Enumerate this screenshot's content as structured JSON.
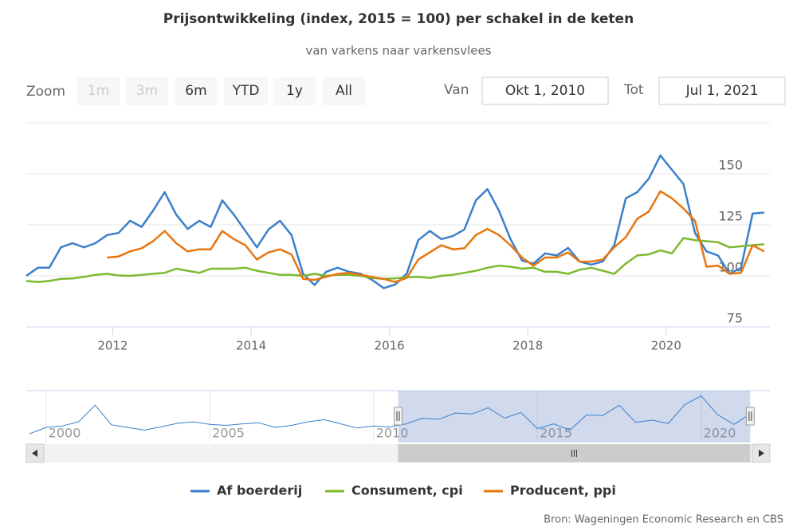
{
  "chart_data": {
    "type": "line",
    "title": "Prijsontwikkeling (index, 2015 = 100) per schakel in de keten",
    "subtitle": "van varkens naar varkensvlees",
    "range_selector": {
      "label": "Zoom",
      "buttons": [
        "1m",
        "3m",
        "6m",
        "YTD",
        "1y",
        "All"
      ],
      "enabled": [
        false,
        false,
        true,
        true,
        true,
        true
      ],
      "from_label": "Van",
      "from": "Okt 1, 2010",
      "to_label": "Tot",
      "to": "Jul 1, 2021"
    },
    "xlim": [
      2010.75,
      2021.5
    ],
    "xticks": [
      2012,
      2014,
      2016,
      2018,
      2020
    ],
    "ylim": [
      75,
      175
    ],
    "yticks": [
      75,
      100,
      125,
      150
    ],
    "grid": true,
    "legend": "bottom",
    "x": [
      2010.75,
      2010.917,
      2011.083,
      2011.25,
      2011.417,
      2011.583,
      2011.75,
      2011.917,
      2012.083,
      2012.25,
      2012.417,
      2012.583,
      2012.75,
      2012.917,
      2013.083,
      2013.25,
      2013.417,
      2013.583,
      2013.75,
      2013.917,
      2014.083,
      2014.25,
      2014.417,
      2014.583,
      2014.75,
      2014.917,
      2015.083,
      2015.25,
      2015.417,
      2015.583,
      2015.75,
      2015.917,
      2016.083,
      2016.25,
      2016.417,
      2016.583,
      2016.75,
      2016.917,
      2017.083,
      2017.25,
      2017.417,
      2017.583,
      2017.75,
      2017.917,
      2018.083,
      2018.25,
      2018.417,
      2018.583,
      2018.75,
      2018.917,
      2019.083,
      2019.25,
      2019.417,
      2019.583,
      2019.75,
      2019.917,
      2020.083,
      2020.25,
      2020.417,
      2020.583,
      2020.75,
      2020.917,
      2021.083,
      2021.25,
      2021.417
    ],
    "series": [
      {
        "name": "Af boerderij",
        "color": "#3b7fcb",
        "values": [
          100,
          104,
          104,
          114,
          116,
          114,
          116,
          120,
          121,
          127,
          124,
          132,
          141,
          130,
          123,
          127,
          124,
          137,
          130,
          122,
          114,
          122.7,
          127,
          120,
          101,
          95.5,
          102,
          104,
          102,
          101,
          98,
          94,
          95.8,
          101,
          117.5,
          122,
          118,
          119.5,
          122.7,
          137,
          142.5,
          132,
          118,
          107.5,
          106,
          111,
          110,
          113.7,
          107,
          105.5,
          107,
          115,
          138,
          141,
          147.7,
          159,
          152,
          145,
          121,
          112,
          110,
          101,
          104,
          130.5,
          131
        ]
      },
      {
        "name": "Consument, cpi",
        "color": "#7cb92f",
        "values": [
          97.5,
          97,
          97.5,
          98.5,
          98.7,
          99.5,
          100.5,
          101,
          100.2,
          100,
          100.5,
          101,
          101.5,
          103.5,
          102.5,
          101.5,
          103.5,
          103.5,
          103.5,
          104,
          102.5,
          101.5,
          100.5,
          100.5,
          100,
          101,
          100,
          100.5,
          100.5,
          100,
          99,
          98.5,
          98.8,
          99.3,
          99.5,
          99,
          100,
          100.5,
          101.5,
          102.5,
          104,
          105,
          104.5,
          103.5,
          104,
          102,
          102,
          101,
          103,
          104,
          102.5,
          101,
          106,
          110,
          110.5,
          112.5,
          111,
          118.5,
          117.5,
          117,
          116.5,
          114,
          114.5,
          115,
          115.5
        ]
      },
      {
        "name": "Producent, ppi",
        "color": "#e8760f",
        "values": [
          null,
          null,
          null,
          null,
          null,
          null,
          null,
          109,
          109.5,
          112,
          113.5,
          117,
          122,
          116,
          112,
          113,
          113,
          122,
          118,
          115,
          108,
          111.5,
          113,
          110.5,
          98.5,
          98,
          99.5,
          101,
          101.5,
          100.5,
          99.5,
          98.5,
          97,
          99,
          108,
          111.5,
          115,
          113,
          113.5,
          120,
          123,
          120,
          115,
          109,
          105,
          109,
          109,
          111.5,
          107,
          107,
          108,
          114,
          119,
          128,
          131.5,
          141.5,
          138,
          133,
          127,
          104.5,
          105,
          101,
          101.5,
          115,
          112
        ]
      }
    ],
    "navigator": {
      "color": "#3b7fcb",
      "xlim": [
        1999.4,
        2022.1
      ],
      "ylim": [
        68,
        168
      ],
      "xticks": [
        2000,
        2005,
        2010,
        2015,
        2020
      ],
      "x": [
        1999.5,
        2000,
        2000.5,
        2001,
        2001.5,
        2002,
        2002.5,
        2003,
        2003.5,
        2004,
        2004.5,
        2005,
        2005.5,
        2006,
        2006.5,
        2007,
        2007.5,
        2008,
        2008.5,
        2009,
        2009.5,
        2010,
        2010.5,
        2011,
        2011.5,
        2012,
        2012.5,
        2013,
        2013.5,
        2014,
        2014.5,
        2015,
        2015.5,
        2016,
        2016.5,
        2017,
        2017.5,
        2018,
        2018.5,
        2019,
        2019.5,
        2020,
        2020.5,
        2021,
        2021.5
      ],
      "values": [
        85,
        97,
        100,
        108,
        140,
        102,
        97,
        92,
        98,
        105,
        108,
        103,
        101,
        104,
        106,
        97,
        101,
        108,
        112,
        104,
        96,
        100,
        98,
        104,
        115,
        113,
        125,
        123,
        135,
        115,
        126,
        95,
        104,
        92,
        121,
        120,
        140,
        107,
        111,
        105,
        141,
        158,
        122,
        103,
        123
      ]
    },
    "credits": "Bron: Wageningen Economic Research en CBS"
  }
}
